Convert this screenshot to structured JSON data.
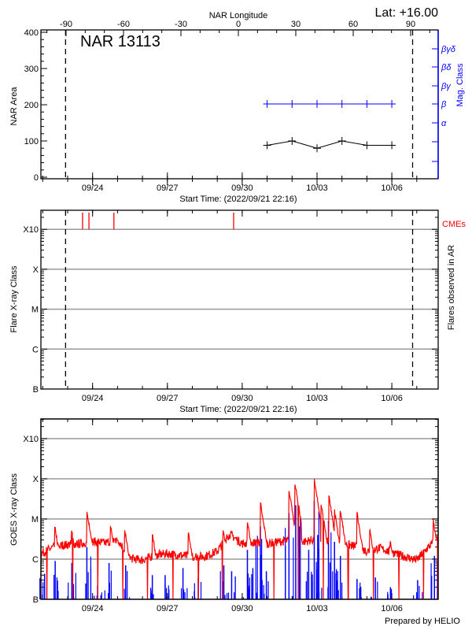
{
  "header": {
    "lat_label": "Lat: +16.00"
  },
  "chart_data": [
    {
      "type": "line",
      "title": "NAR 13113",
      "xlabel": "Start Time: (2022/09/21 22:16)",
      "ylabel": "NAR Area",
      "y2label": "Mag. Class",
      "top_xlabel": "NAR Longitude",
      "start_time": "2022/09/21 22:16",
      "xticks": [
        "09/24",
        "09/27",
        "09/30",
        "10/03",
        "10/06"
      ],
      "top_xticks": [
        "-90",
        "-60",
        "-30",
        "0",
        "30",
        "60",
        "90"
      ],
      "yticks": [
        "0",
        "100",
        "200",
        "300",
        "400"
      ],
      "ylim": [
        0,
        400
      ],
      "y2ticks": [
        "",
        "",
        "α",
        "β",
        "βγ",
        "βδ",
        "βγδ"
      ],
      "limb_crossings": [
        "09/22 22:00",
        "10/06 20:00"
      ],
      "series": [
        {
          "color": "#000000",
          "x": [
            "10/01 00:00",
            "10/02 00:00",
            "10/03 00:00",
            "10/04 00:00",
            "10/05 00:00",
            "10/06 00:00"
          ],
          "values": [
            88,
            100,
            80,
            100,
            88,
            88
          ]
        },
        {
          "name": "Mag. Class",
          "color": "#0000ff",
          "x": [
            "10/01 00:00",
            "10/02 00:00",
            "10/03 00:00",
            "10/04 00:00",
            "10/05 00:00",
            "10/06 00:00"
          ],
          "values": [
            "β",
            "β",
            "β",
            "β",
            "β",
            "β"
          ]
        }
      ]
    },
    {
      "type": "scatter",
      "xlabel": "Start Time: (2022/09/21 22:16)",
      "ylabel": "Flare X-ray Class",
      "y2label": "Flares observed in AR",
      "legend_label": "CMEs",
      "xticks": [
        "09/24",
        "09/27",
        "09/30",
        "10/03",
        "10/06"
      ],
      "yticks": [
        "B",
        "C",
        "M",
        "X",
        "X10"
      ],
      "grid": true,
      "limb_crossings": [
        "09/22 22:00",
        "10/06 20:00"
      ],
      "flares": [],
      "cmes": {
        "color": "#ff0000",
        "times": [
          "09/23 14:20",
          "09/23 20:30",
          "09/24 20:30",
          "09/29 15:45"
        ]
      }
    },
    {
      "type": "line",
      "ylabel": "GOES X-ray Class",
      "xticks": [
        "09/24",
        "09/27",
        "09/30",
        "10/03",
        "10/06"
      ],
      "yticks": [
        "B",
        "C",
        "M",
        "X",
        "X10"
      ],
      "grid": true,
      "footer": "Prepared by HELIO",
      "series": [
        {
          "color": "#ff0000",
          "baseline": [
            [
              "09/21 22:16",
              "C1.3"
            ],
            [
              "09/22 12:00",
              "C2"
            ],
            [
              "09/23 00:00",
              "C2.2"
            ],
            [
              "09/23 12:00",
              "C2.3"
            ],
            [
              "09/24 00:00",
              "C2.6"
            ],
            [
              "09/24 12:00",
              "C2.4"
            ],
            [
              "09/25 00:00",
              "C3"
            ],
            [
              "09/25 12:00",
              "C1.0"
            ],
            [
              "09/26 00:00",
              "B9"
            ],
            [
              "09/26 12:00",
              "C1.2"
            ],
            [
              "09/27 00:00",
              "C1.3"
            ],
            [
              "09/27 12:00",
              "C1.2"
            ],
            [
              "09/28 00:00",
              "C1.1"
            ],
            [
              "09/28 12:00",
              "C1.1"
            ],
            [
              "09/29 00:00",
              "C1.5"
            ],
            [
              "09/29 12:00",
              "C4"
            ],
            [
              "09/30 00:00",
              "C2.3"
            ],
            [
              "09/30 12:00",
              "C2.5"
            ],
            [
              "10/01 00:00",
              "C2.3"
            ],
            [
              "10/01 12:00",
              "C2.6"
            ],
            [
              "10/02 00:00",
              "C2.8"
            ],
            [
              "10/02 12:00",
              "C2.6"
            ],
            [
              "10/03 00:00",
              "C3"
            ],
            [
              "10/03 12:00",
              "C2.8"
            ],
            [
              "10/04 00:00",
              "C2.3"
            ],
            [
              "10/04 12:00",
              "C2"
            ],
            [
              "10/05 00:00",
              "C1.5"
            ],
            [
              "10/05 12:00",
              "C1.8"
            ],
            [
              "10/06 00:00",
              "C1.4"
            ],
            [
              "10/06 12:00",
              "C1.1"
            ],
            [
              "10/07 00:00",
              "B9"
            ],
            [
              "10/07 12:00",
              "C2"
            ],
            [
              "10/07 20:00",
              "C3"
            ]
          ],
          "peaks": [
            [
              "09/22 11:30",
              "C8"
            ],
            [
              "09/23 03:50",
              "C6"
            ],
            [
              "09/23 18:30",
              "M1.8"
            ],
            [
              "09/24 17:20",
              "C7.7"
            ],
            [
              "09/25 07:00",
              "C6"
            ],
            [
              "09/26 09:30",
              "C4.9"
            ],
            [
              "09/27 20:20",
              "C5"
            ],
            [
              "09/29 05:40",
              "C5.7"
            ],
            [
              "09/30 05:00",
              "M1"
            ],
            [
              "09/30 17:30",
              "M3"
            ],
            [
              "10/01 21:00",
              "M6"
            ],
            [
              "10/02 02:50",
              "M9"
            ],
            [
              "10/02 21:20",
              "X1.1"
            ],
            [
              "10/03 03:50",
              "M2.8"
            ],
            [
              "10/03 11:30",
              "M4.2"
            ],
            [
              "10/03 16:50",
              "M1.8"
            ],
            [
              "10/03 22:30",
              "M1.8"
            ],
            [
              "10/04 14:30",
              "M1.6"
            ],
            [
              "10/05 02:50",
              "C6"
            ],
            [
              "10/05 22:40",
              "C2.9"
            ],
            [
              "10/07 16:00",
              "M1"
            ]
          ],
          "dropouts": [
            "09/22 04:00",
            "09/23 04:45",
            "09/24 05:00",
            "09/25 05:00",
            "09/26 04:45",
            "09/27 05:30",
            "09/28 05:40",
            "09/29 05:00",
            "10/01 06:25",
            "10/02 06:00",
            "10/03 06:00",
            "10/04 06:00",
            "10/05 06:10",
            "10/06 06:40",
            "10/07 06:40",
            "10/07 20:20"
          ]
        },
        {
          "color": "#0000ff",
          "peaks": [
            [
              "09/22 01:50",
              "B4.3"
            ],
            [
              "09/22 12:00",
              "B9"
            ],
            [
              "09/23 04:00",
              "B8"
            ],
            [
              "09/23 18:30",
              "C2"
            ],
            [
              "09/24 04:50",
              "B2.2"
            ],
            [
              "09/24 15:50",
              "B8"
            ],
            [
              "09/25 07:50",
              "B7"
            ],
            [
              "09/26 09:30",
              "B4"
            ],
            [
              "09/26 21:50",
              "B4"
            ],
            [
              "09/27 15:00",
              "B6"
            ],
            [
              "09/28 05:40",
              "B3.5"
            ],
            [
              "09/29 06:20",
              "B7"
            ],
            [
              "09/29 13:50",
              "B5"
            ],
            [
              "09/30 05:00",
              "C1.7"
            ],
            [
              "09/30 10:15",
              "B6"
            ],
            [
              "09/30 17:30",
              "C6.5"
            ],
            [
              "09/30 23:15",
              "B5"
            ],
            [
              "10/01 21:00",
              "M1.4"
            ],
            [
              "10/02 03:30",
              "M2.2"
            ],
            [
              "10/02 16:00",
              "C1.7"
            ],
            [
              "10/02 21:20",
              "M2.8"
            ],
            [
              "10/03 00:40",
              "C4"
            ],
            [
              "10/03 11:00",
              "C9"
            ],
            [
              "10/03 16:50",
              "C2.7"
            ],
            [
              "10/03 22:30",
              "C1.2"
            ],
            [
              "10/04 14:30",
              "B3.2"
            ],
            [
              "10/05 08:10",
              "B3.5"
            ],
            [
              "10/05 22:40",
              "B2"
            ],
            [
              "10/07 00:50",
              "B3"
            ],
            [
              "10/07 17:00",
              "C1.2"
            ]
          ]
        }
      ]
    }
  ]
}
